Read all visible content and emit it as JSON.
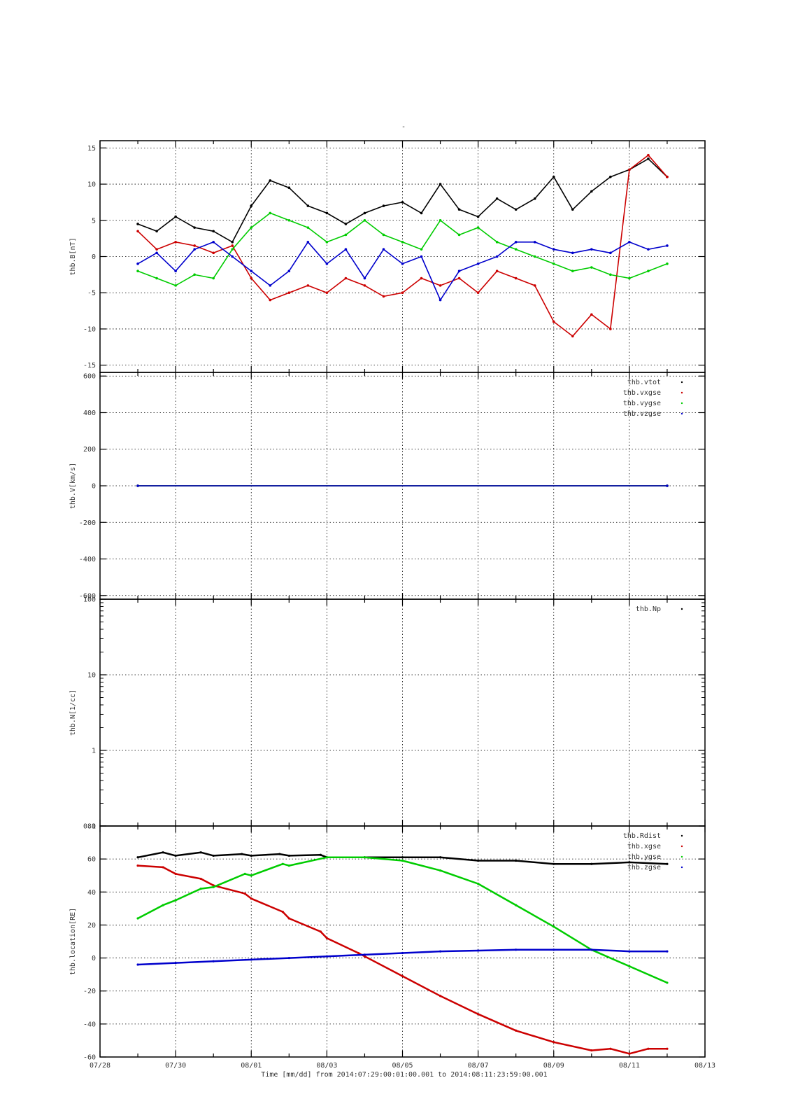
{
  "figure": {
    "title": "-",
    "x_label": "Time [mm/dd]  from 2014:07:29:00:01:00.001  to  2014:08:11:23:59:00.001"
  },
  "chart_data": [
    {
      "type": "scatter",
      "panel": "magnetic-field",
      "ylabel": "thb.B[nT]",
      "ylim": [
        -16,
        16
      ],
      "yticks": [
        -15,
        -10,
        -5,
        0,
        5,
        10,
        15
      ],
      "ytick_labels": [
        "-15",
        "-10",
        "-5",
        "0",
        "5",
        "10",
        "15"
      ],
      "x_range": [
        "07/28",
        "08/13"
      ],
      "grid": true,
      "legend_position": "top-right",
      "series": [
        {
          "name": "",
          "color": "#000000",
          "x": [
            "07/29 00:00",
            "07/29 12:00",
            "07/30 00:00",
            "07/30 12:00",
            "07/31 00:00",
            "07/31 12:00",
            "08/01 00:00",
            "08/01 12:00",
            "08/02 00:00",
            "08/02 12:00",
            "08/03 00:00",
            "08/03 12:00",
            "08/04 00:00",
            "08/04 12:00",
            "08/05 00:00",
            "08/05 12:00",
            "08/06 00:00",
            "08/06 12:00",
            "08/07 00:00",
            "08/07 12:00",
            "08/08 00:00",
            "08/08 12:00",
            "08/09 00:00",
            "08/09 12:00",
            "08/10 00:00",
            "08/10 12:00",
            "08/11 00:00",
            "08/11 12:00",
            "08/12 00:00"
          ],
          "y": [
            4.5,
            3.5,
            5.5,
            4.0,
            3.5,
            2.0,
            7.0,
            10.5,
            9.5,
            7.0,
            6.0,
            4.5,
            6.0,
            7.0,
            7.5,
            6.0,
            10.0,
            6.5,
            5.5,
            8.0,
            6.5,
            8.0,
            11.0,
            6.5,
            9.0,
            11.0,
            12.0,
            13.5,
            11.0
          ]
        },
        {
          "name": "",
          "color": "#cc0000",
          "x": [
            "07/29 00:00",
            "07/29 12:00",
            "07/30 00:00",
            "07/30 12:00",
            "07/31 00:00",
            "07/31 12:00",
            "08/01 00:00",
            "08/01 12:00",
            "08/02 00:00",
            "08/02 12:00",
            "08/03 00:00",
            "08/03 12:00",
            "08/04 00:00",
            "08/04 12:00",
            "08/05 00:00",
            "08/05 12:00",
            "08/06 00:00",
            "08/06 12:00",
            "08/07 00:00",
            "08/07 12:00",
            "08/08 00:00",
            "08/08 12:00",
            "08/09 00:00",
            "08/09 12:00",
            "08/10 00:00",
            "08/10 12:00",
            "08/11 00:00",
            "08/11 12:00",
            "08/12 00:00"
          ],
          "y": [
            3.5,
            1.0,
            2.0,
            1.5,
            0.5,
            1.5,
            -3.0,
            -6.0,
            -5.0,
            -4.0,
            -5.0,
            -3.0,
            -4.0,
            -5.5,
            -5.0,
            -3.0,
            -4.0,
            -3.0,
            -5.0,
            -2.0,
            -3.0,
            -4.0,
            -9.0,
            -11.0,
            -8.0,
            -10.0,
            12.0,
            14.0,
            11.0
          ]
        },
        {
          "name": "",
          "color": "#00cc00",
          "x": [
            "07/29 00:00",
            "07/29 12:00",
            "07/30 00:00",
            "07/30 12:00",
            "07/31 00:00",
            "07/31 12:00",
            "08/01 00:00",
            "08/01 12:00",
            "08/02 00:00",
            "08/02 12:00",
            "08/03 00:00",
            "08/03 12:00",
            "08/04 00:00",
            "08/04 12:00",
            "08/05 00:00",
            "08/05 12:00",
            "08/06 00:00",
            "08/06 12:00",
            "08/07 00:00",
            "08/07 12:00",
            "08/08 00:00",
            "08/08 12:00",
            "08/09 00:00",
            "08/09 12:00",
            "08/10 00:00",
            "08/10 12:00",
            "08/11 00:00",
            "08/11 12:00",
            "08/12 00:00"
          ],
          "y": [
            -2.0,
            -3.0,
            -4.0,
            -2.5,
            -3.0,
            1.0,
            4.0,
            6.0,
            5.0,
            4.0,
            2.0,
            3.0,
            5.0,
            3.0,
            2.0,
            1.0,
            5.0,
            3.0,
            4.0,
            2.0,
            1.0,
            0.0,
            -1.0,
            -2.0,
            -1.5,
            -2.5,
            -3.0,
            -2.0,
            -1.0
          ]
        },
        {
          "name": "",
          "color": "#0000cc",
          "x": [
            "07/29 00:00",
            "07/29 12:00",
            "07/30 00:00",
            "07/30 12:00",
            "07/31 00:00",
            "07/31 12:00",
            "08/01 00:00",
            "08/01 12:00",
            "08/02 00:00",
            "08/02 12:00",
            "08/03 00:00",
            "08/03 12:00",
            "08/04 00:00",
            "08/04 12:00",
            "08/05 00:00",
            "08/05 12:00",
            "08/06 00:00",
            "08/06 12:00",
            "08/07 00:00",
            "08/07 12:00",
            "08/08 00:00",
            "08/08 12:00",
            "08/09 00:00",
            "08/09 12:00",
            "08/10 00:00",
            "08/10 12:00",
            "08/11 00:00",
            "08/11 12:00",
            "08/12 00:00"
          ],
          "y": [
            -1.0,
            0.5,
            -2.0,
            1.0,
            2.0,
            0.0,
            -2.0,
            -4.0,
            -2.0,
            2.0,
            -1.0,
            1.0,
            -3.0,
            1.0,
            -1.0,
            0.0,
            -6.0,
            -2.0,
            -1.0,
            0.0,
            2.0,
            2.0,
            1.0,
            0.5,
            1.0,
            0.5,
            2.0,
            1.0,
            1.5
          ]
        }
      ]
    },
    {
      "type": "scatter",
      "panel": "velocity",
      "ylabel": "thb.V[km/s]",
      "ylim": [
        -620,
        620
      ],
      "yticks": [
        -600,
        -400,
        -200,
        0,
        200,
        400,
        600
      ],
      "ytick_labels": [
        "-600",
        "-400",
        "-200",
        "0",
        "200",
        "400",
        "600"
      ],
      "x_range": [
        "07/28",
        "08/13"
      ],
      "grid": true,
      "legend_position": "top-right",
      "series": [
        {
          "name": "thb.vtot",
          "color": "#000000",
          "x": [
            "07/29 00:00",
            "08/12 00:00"
          ],
          "y": [
            0,
            0
          ]
        },
        {
          "name": "thb.vxgse",
          "color": "#cc0000",
          "x": [
            "07/29 00:00",
            "08/12 00:00"
          ],
          "y": [
            0,
            0
          ]
        },
        {
          "name": "thb.vygse",
          "color": "#00cc00",
          "x": [
            "07/29 00:00",
            "08/12 00:00"
          ],
          "y": [
            0,
            0
          ]
        },
        {
          "name": "thb.vzgse",
          "color": "#0000cc",
          "x": [
            "07/29 00:00",
            "08/12 00:00"
          ],
          "y": [
            0,
            0
          ]
        }
      ]
    },
    {
      "type": "scatter",
      "panel": "density",
      "ylabel": "thb.N[1/cc]",
      "yscale": "log",
      "ylim": [
        0.1,
        100
      ],
      "yticks": [
        0.1,
        1,
        10,
        100
      ],
      "ytick_labels": [
        "0.1",
        "1",
        "10",
        "100"
      ],
      "x_range": [
        "07/28",
        "08/13"
      ],
      "grid": true,
      "legend_position": "top-right",
      "series": [
        {
          "name": "thb.Np",
          "color": "#000000",
          "x": [],
          "y": []
        }
      ]
    },
    {
      "type": "line",
      "panel": "location",
      "ylabel": "thb.location[RE]",
      "ylim": [
        -60,
        80
      ],
      "yticks": [
        -60,
        -40,
        -20,
        0,
        20,
        40,
        60,
        80
      ],
      "ytick_labels": [
        "-60",
        "-40",
        "-20",
        "0",
        "20",
        "40",
        "60",
        "80"
      ],
      "x_range": [
        "07/28",
        "08/13"
      ],
      "xticks": [
        "07/28",
        "07/30",
        "08/01",
        "08/03",
        "08/05",
        "08/07",
        "08/09",
        "08/11",
        "08/13"
      ],
      "grid": true,
      "legend_position": "top-right",
      "series": [
        {
          "name": "thb.Rdist",
          "color": "#000000",
          "x": [
            "07/29 00:00",
            "07/29 16:00",
            "07/30 00:00",
            "07/30 16:00",
            "07/31 00:00",
            "07/31 18:00",
            "08/01 00:00",
            "08/01 18:00",
            "08/02 00:00",
            "08/02 20:00",
            "08/03 00:00",
            "08/04 00:00",
            "08/05 00:00",
            "08/06 00:00",
            "08/07 00:00",
            "08/08 00:00",
            "08/09 00:00",
            "08/10 00:00",
            "08/11 00:00",
            "08/12 00:00"
          ],
          "y": [
            61,
            64,
            62,
            64,
            62,
            63,
            62,
            63,
            62,
            62.5,
            61,
            61,
            61,
            61,
            59,
            59,
            57,
            57,
            58,
            57
          ]
        },
        {
          "name": "thb.xgse",
          "color": "#cc0000",
          "x": [
            "07/29 00:00",
            "07/29 16:00",
            "07/30 00:00",
            "07/30 16:00",
            "07/31 00:00",
            "07/31 20:00",
            "08/01 00:00",
            "08/01 20:00",
            "08/02 00:00",
            "08/02 20:00",
            "08/03 00:00",
            "08/03 20:00",
            "08/04 00:00",
            "08/05 00:00",
            "08/06 00:00",
            "08/07 00:00",
            "08/08 00:00",
            "08/09 00:00",
            "08/10 00:00",
            "08/10 12:00",
            "08/11 00:00",
            "08/11 12:00",
            "08/12 00:00"
          ],
          "y": [
            56,
            55,
            51,
            48,
            44,
            39,
            36,
            28,
            24,
            16,
            12,
            3,
            1,
            -11,
            -23,
            -34,
            -44,
            -51,
            -56,
            -55,
            -58,
            -55,
            -55
          ]
        },
        {
          "name": "thb.ygse",
          "color": "#00cc00",
          "x": [
            "07/29 00:00",
            "07/29 16:00",
            "07/30 00:00",
            "07/30 16:00",
            "07/31 00:00",
            "07/31 20:00",
            "08/01 00:00",
            "08/01 20:00",
            "08/02 00:00",
            "08/03 00:00",
            "08/04 00:00",
            "08/05 00:00",
            "08/06 00:00",
            "08/07 00:00",
            "08/08 00:00",
            "08/09 00:00",
            "08/10 00:00",
            "08/11 00:00",
            "08/12 00:00"
          ],
          "y": [
            24,
            32,
            35,
            42,
            43,
            51,
            50,
            57,
            56,
            61,
            61,
            59,
            53,
            45,
            32,
            19,
            5,
            -5,
            -15
          ]
        },
        {
          "name": "thb.zgse",
          "color": "#0000cc",
          "x": [
            "07/29 00:00",
            "07/30 00:00",
            "07/31 00:00",
            "08/01 00:00",
            "08/02 00:00",
            "08/03 00:00",
            "08/04 00:00",
            "08/05 00:00",
            "08/06 00:00",
            "08/07 00:00",
            "08/08 00:00",
            "08/09 00:00",
            "08/10 00:00",
            "08/11 00:00",
            "08/12 00:00"
          ],
          "y": [
            -4,
            -3,
            -2,
            -1,
            0,
            1,
            2,
            3,
            4,
            4.5,
            5,
            5,
            5,
            4,
            4
          ]
        }
      ]
    }
  ]
}
